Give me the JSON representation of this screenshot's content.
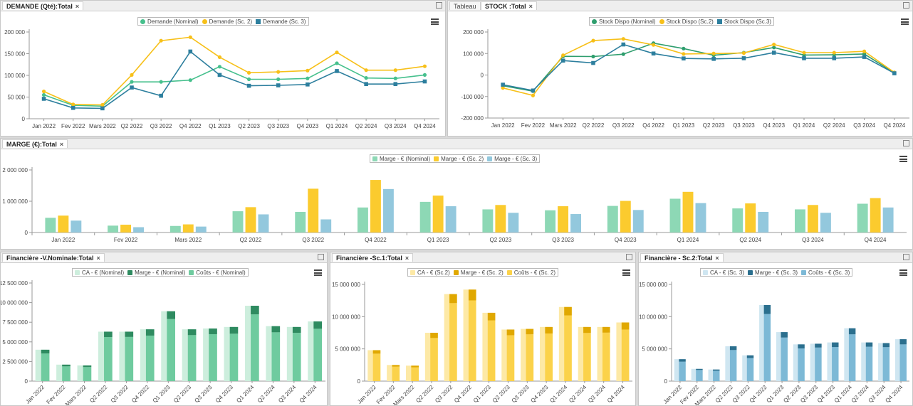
{
  "panels": {
    "demande": {
      "tabs": [
        {
          "label": "DEMANDE (Qté):Total",
          "active": true
        }
      ]
    },
    "stock": {
      "tabs": [
        {
          "label": "Tableau",
          "active": false
        },
        {
          "label": "STOCK :Total",
          "active": true
        }
      ]
    },
    "marge": {
      "tabs": [
        {
          "label": "MARGE (€):Total",
          "active": true
        }
      ]
    },
    "fin_nom": {
      "tabs": [
        {
          "label": "Financière -V.Nominale:Total",
          "active": true
        }
      ]
    },
    "fin_sc1": {
      "tabs": [
        {
          "label": "Financière -Sc.1:Total",
          "active": true
        }
      ]
    },
    "fin_sc2": {
      "tabs": [
        {
          "label": "Financière - Sc.2:Total",
          "active": true
        }
      ]
    }
  },
  "chart_data": [
    {
      "id": "demande",
      "type": "line",
      "categories": [
        "Jan 2022",
        "Fev 2022",
        "Mars 2022",
        "Q2 2022",
        "Q3 2022",
        "Q4 2022",
        "Q1 2023",
        "Q2 2023",
        "Q3 2023",
        "Q4 2023",
        "Q1 2024",
        "Q2 2024",
        "Q3 2024",
        "Q4 2024"
      ],
      "ylim": [
        0,
        200000
      ],
      "yticks": [
        0,
        50000,
        100000,
        150000,
        200000
      ],
      "ytick_labels": [
        "0",
        "50 000",
        "100 000",
        "150 000",
        "200 000"
      ],
      "legend_position": "top-center",
      "grid": false,
      "series": [
        {
          "name": "Demande (Nominal)",
          "color": "#46c08d",
          "marker": "circle",
          "values": [
            55000,
            31000,
            29000,
            85000,
            85000,
            89000,
            120000,
            91000,
            91000,
            93000,
            128000,
            94000,
            93000,
            101000
          ]
        },
        {
          "name": "Demande (Sc. 2)",
          "color": "#f7c019",
          "marker": "circle",
          "values": [
            63000,
            33000,
            32000,
            101000,
            180000,
            188000,
            142000,
            106000,
            108000,
            111000,
            153000,
            112000,
            112000,
            121000
          ]
        },
        {
          "name": "Demande (Sc. 3)",
          "color": "#2d7f9e",
          "marker": "square",
          "values": [
            46000,
            25000,
            24000,
            72000,
            53000,
            155000,
            101000,
            76000,
            77000,
            79000,
            110000,
            80000,
            80000,
            86000
          ]
        }
      ]
    },
    {
      "id": "stock",
      "type": "line",
      "categories": [
        "Jan 2022",
        "Fev 2022",
        "Mars 2022",
        "Q2 2022",
        "Q3 2022",
        "Q4 2022",
        "Q1 2023",
        "Q2 2023",
        "Q3 2023",
        "Q4 2023",
        "Q1 2024",
        "Q2 2024",
        "Q3 2024",
        "Q4 2024"
      ],
      "ylim": [
        -200000,
        200000
      ],
      "yticks": [
        -200000,
        -100000,
        0,
        100000,
        200000
      ],
      "ytick_labels": [
        "-200 000",
        "-100 000",
        "0",
        "100 000",
        "200 000"
      ],
      "legend_position": "top-center",
      "grid": false,
      "series": [
        {
          "name": "Stock Dispo (Nominal)",
          "color": "#2f9e6e",
          "marker": "circle",
          "values": [
            -50000,
            -75000,
            87000,
            86000,
            97000,
            148000,
            123000,
            92000,
            104000,
            128000,
            93000,
            94000,
            98000,
            10000
          ]
        },
        {
          "name": "Stock Dispo (Sc.2)",
          "color": "#f7c019",
          "marker": "circle",
          "values": [
            -60000,
            -95000,
            92000,
            160000,
            168000,
            140000,
            98000,
            100000,
            102000,
            142000,
            104000,
            104000,
            110000,
            12000
          ]
        },
        {
          "name": "Stock Dispo (Sc.3)",
          "color": "#2d7f9e",
          "marker": "square",
          "values": [
            -45000,
            -72000,
            67000,
            56000,
            142000,
            100000,
            77000,
            75000,
            78000,
            104000,
            78000,
            78000,
            84000,
            8000
          ]
        }
      ]
    },
    {
      "id": "marge",
      "type": "bar",
      "categories": [
        "Jan 2022",
        "Fev 2022",
        "Mars 2022",
        "Q2 2022",
        "Q3 2022",
        "Q4 2022",
        "Q1 2023",
        "Q2 2023",
        "Q3 2023",
        "Q4 2023",
        "Q1 2024",
        "Q2 2024",
        "Q3 2024",
        "Q4 2024"
      ],
      "ylim": [
        0,
        2000000
      ],
      "yticks": [
        0,
        1000000,
        2000000
      ],
      "ytick_labels": [
        "0",
        "1 000 000",
        "2 000 000"
      ],
      "legend_position": "top-center",
      "grid": false,
      "series": [
        {
          "name": "Marge - € (Nominal)",
          "color": "#8dd8b5",
          "values": [
            470000,
            220000,
            210000,
            680000,
            660000,
            800000,
            980000,
            740000,
            710000,
            850000,
            1080000,
            770000,
            740000,
            920000
          ]
        },
        {
          "name": "Marge - € (Sc. 2)",
          "color": "#fbcb2e",
          "values": [
            540000,
            250000,
            260000,
            810000,
            1400000,
            1680000,
            1180000,
            880000,
            840000,
            1010000,
            1300000,
            930000,
            880000,
            1100000
          ]
        },
        {
          "name": "Marge - € (Sc. 3)",
          "color": "#93c8dd",
          "values": [
            380000,
            170000,
            190000,
            580000,
            420000,
            1390000,
            840000,
            630000,
            590000,
            720000,
            940000,
            660000,
            630000,
            800000
          ]
        }
      ]
    },
    {
      "id": "fin_nom",
      "type": "bar",
      "stacked_overlap": true,
      "categories": [
        "Jan 2022",
        "Fev 2022",
        "Mars 2022",
        "Q2 2022",
        "Q3 2022",
        "Q4 2022",
        "Q1 2023",
        "Q2 2023",
        "Q3 2023",
        "Q4 2023",
        "Q1 2024",
        "Q2 2024",
        "Q3 2024",
        "Q4 2024"
      ],
      "ylim": [
        0,
        12500000
      ],
      "yticks": [
        0,
        2500000,
        5000000,
        7500000,
        10000000,
        12500000
      ],
      "ytick_labels": [
        "0",
        "2 500 000",
        "5 000 000",
        "7 500 000",
        "10 000 000",
        "12 500 000"
      ],
      "legend_position": "top-center",
      "grid": false,
      "series": [
        {
          "name": "CA - € (Nominal)",
          "color": "#cdeedd",
          "values": [
            4000000,
            2100000,
            2000000,
            6300000,
            6300000,
            6600000,
            8900000,
            6600000,
            6700000,
            6900000,
            9600000,
            7000000,
            6900000,
            7600000
          ]
        },
        {
          "name": "Marge - € (Nominal)",
          "color": "#2e8b60",
          "values": [
            480000,
            220000,
            210000,
            690000,
            670000,
            800000,
            990000,
            740000,
            720000,
            860000,
            1090000,
            780000,
            750000,
            930000
          ]
        },
        {
          "name": "Coûts - € (Nominal)",
          "color": "#6fcb9f",
          "values": [
            3520000,
            1880000,
            1790000,
            5610000,
            5630000,
            5800000,
            7910000,
            5860000,
            5980000,
            6040000,
            8510000,
            6220000,
            6150000,
            6670000
          ]
        }
      ]
    },
    {
      "id": "fin_sc1",
      "type": "bar",
      "stacked_overlap": true,
      "categories": [
        "Jan 2022",
        "Fev 2022",
        "Mars 2022",
        "Q2 2022",
        "Q3 2022",
        "Q4 2022",
        "Q1 2023",
        "Q2 2023",
        "Q3 2023",
        "Q4 2023",
        "Q1 2024",
        "Q2 2024",
        "Q3 2024",
        "Q4 2024"
      ],
      "ylim": [
        0,
        15000000
      ],
      "yticks": [
        0,
        5000000,
        10000000,
        15000000
      ],
      "ytick_labels": [
        "0",
        "5 000 000",
        "10 000 000",
        "15 000 000"
      ],
      "legend_position": "top-center",
      "grid": false,
      "series": [
        {
          "name": "CA - € (Sc.2)",
          "color": "#fde9a6",
          "values": [
            4800000,
            2500000,
            2400000,
            7500000,
            13500000,
            14200000,
            10600000,
            8000000,
            8100000,
            8400000,
            11500000,
            8400000,
            8400000,
            9100000
          ]
        },
        {
          "name": "Marge - € (Sc. 2)",
          "color": "#e0a800",
          "values": [
            540000,
            250000,
            260000,
            810000,
            1400000,
            1680000,
            1180000,
            880000,
            840000,
            1010000,
            1300000,
            930000,
            880000,
            1100000
          ]
        },
        {
          "name": "Coûts - € (Sc. 2)",
          "color": "#fbd24a",
          "values": [
            4260000,
            2250000,
            2140000,
            6690000,
            12100000,
            12520000,
            9420000,
            7120000,
            7260000,
            7390000,
            10200000,
            7470000,
            7520000,
            8000000
          ]
        }
      ]
    },
    {
      "id": "fin_sc2",
      "type": "bar",
      "stacked_overlap": true,
      "categories": [
        "Jan 2022",
        "Fev 2022",
        "Mars 2022",
        "Q2 2022",
        "Q3 2022",
        "Q4 2022",
        "Q1 2023",
        "Q2 2023",
        "Q3 2023",
        "Q4 2023",
        "Q1 2024",
        "Q2 2024",
        "Q3 2024",
        "Q4 2024"
      ],
      "ylim": [
        0,
        15000000
      ],
      "yticks": [
        0,
        5000000,
        10000000,
        15000000
      ],
      "ytick_labels": [
        "0",
        "5 000 000",
        "10 000 000",
        "15 000 000"
      ],
      "legend_position": "top-center",
      "grid": false,
      "series": [
        {
          "name": "CA - € (Sc. 3)",
          "color": "#cfe6f1",
          "values": [
            3400000,
            1900000,
            1800000,
            5400000,
            4000000,
            11800000,
            7600000,
            5700000,
            5800000,
            6000000,
            8200000,
            6000000,
            5900000,
            6500000
          ]
        },
        {
          "name": "Marge - € (Sc. 3)",
          "color": "#2b6f8e",
          "values": [
            380000,
            170000,
            190000,
            580000,
            420000,
            1390000,
            840000,
            630000,
            590000,
            720000,
            940000,
            660000,
            630000,
            800000
          ]
        },
        {
          "name": "Coûts - € (Sc. 3)",
          "color": "#7db9d6",
          "values": [
            3020000,
            1730000,
            1610000,
            4820000,
            3580000,
            10410000,
            6760000,
            5070000,
            5210000,
            5280000,
            7260000,
            5340000,
            5270000,
            5700000
          ]
        }
      ]
    }
  ]
}
